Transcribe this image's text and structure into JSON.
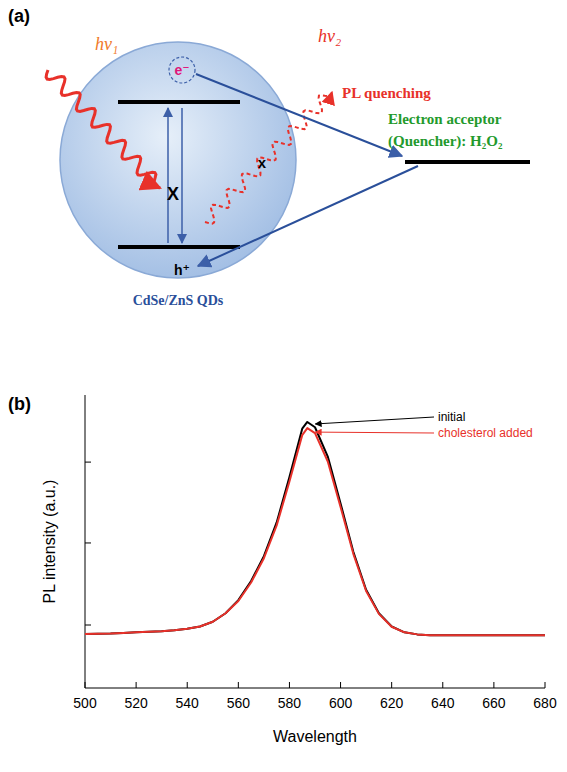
{
  "panels": [
    "(a)",
    "(b)"
  ],
  "diagram": {
    "photon_in": "hv₁",
    "photon_out": "hv₂",
    "quench_label": "PL quenching",
    "electron": "e⁻",
    "hole": "h⁺",
    "blocked": [
      "X",
      "x"
    ],
    "acceptor": [
      "Electron acceptor",
      "(Quencher): H₂O₂"
    ],
    "particle": "CdSe/ZnS QDs"
  },
  "chart_data": {
    "type": "line",
    "x_label": "Wavelength",
    "y_label": "PL intensity (a.u.)",
    "x": [
      500,
      505,
      510,
      515,
      520,
      525,
      530,
      535,
      540,
      545,
      550,
      555,
      560,
      565,
      570,
      575,
      580,
      585,
      587,
      590,
      595,
      600,
      605,
      610,
      615,
      620,
      625,
      630,
      635,
      640,
      645,
      650,
      655,
      660,
      665,
      670,
      675,
      680
    ],
    "xlim": [
      500,
      680
    ],
    "xticks": [
      500,
      520,
      540,
      560,
      580,
      600,
      620,
      640,
      660,
      680
    ],
    "ylim": [
      0,
      100
    ],
    "yticks": [
      21.5,
      49.5,
      77.1
    ],
    "tick_labels": "x",
    "series": [
      {
        "name": "initial",
        "color": "#000000",
        "values": [
          18.4,
          18.5,
          18.6,
          18.8,
          19.0,
          19.2,
          19.4,
          19.7,
          20.2,
          21.0,
          22.6,
          25.5,
          30.0,
          36.5,
          45.0,
          56.5,
          72.0,
          88.5,
          90.8,
          89.0,
          79.0,
          63.0,
          46.5,
          33.5,
          25.5,
          21.0,
          19.0,
          18.3,
          18.0,
          18.0,
          18.0,
          18.0,
          18.0,
          18.0,
          18.0,
          18.0,
          18.0,
          18.0
        ]
      },
      {
        "name": "cholesterol added",
        "color": "#e8312a",
        "values": [
          18.4,
          18.5,
          18.6,
          18.8,
          19.0,
          19.2,
          19.4,
          19.7,
          20.2,
          21.0,
          22.6,
          25.5,
          29.7,
          36.0,
          44.3,
          55.5,
          70.5,
          86.3,
          88.7,
          87.0,
          77.3,
          61.8,
          45.8,
          33.1,
          25.3,
          20.9,
          19.0,
          18.3,
          18.0,
          18.0,
          18.0,
          18.0,
          18.0,
          18.0,
          18.0,
          18.0,
          18.0,
          18.0
        ]
      }
    ]
  }
}
